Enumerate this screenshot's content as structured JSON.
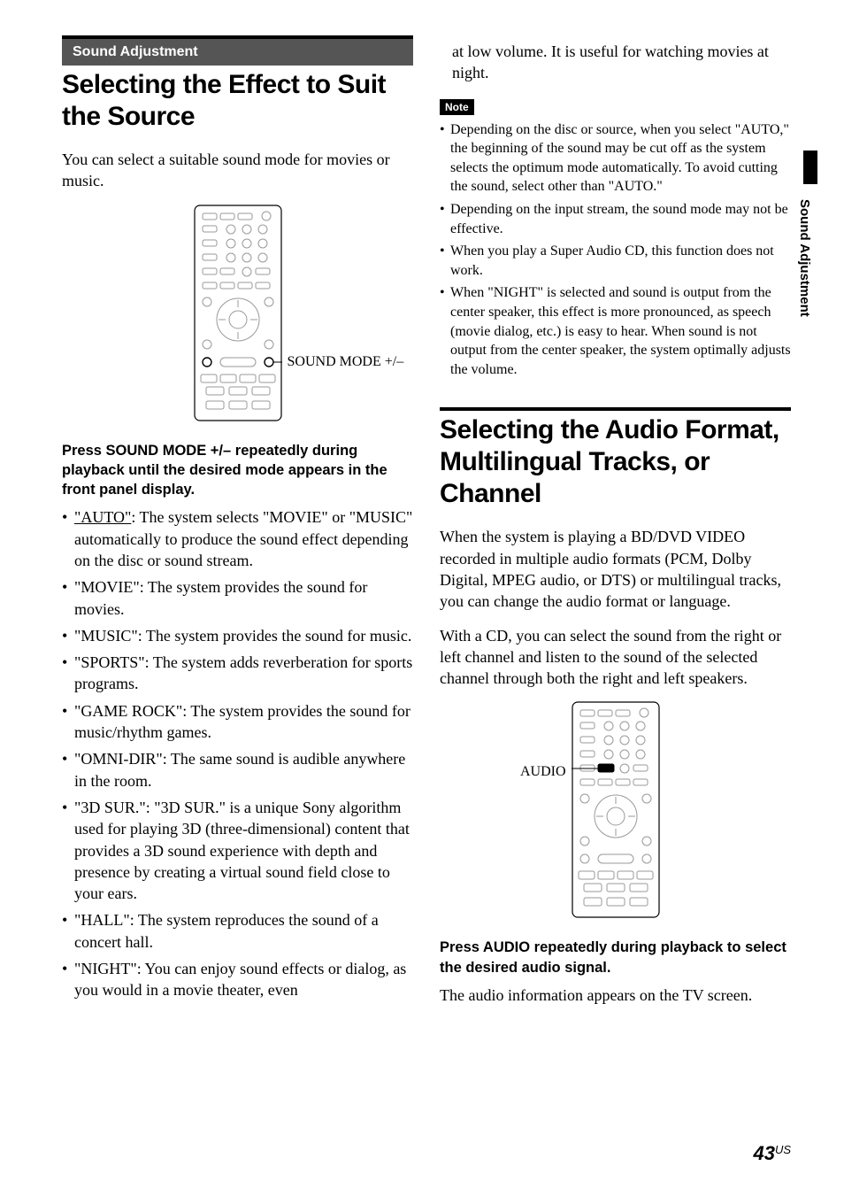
{
  "sectionBar": "Sound Adjustment",
  "heading1": "Selecting the Effect to Suit the Source",
  "intro1": "You can select a suitable sound mode for movies or music.",
  "remoteLabel1": "SOUND MODE +/–",
  "instr1": "Press SOUND MODE +/– repeatedly during playback until the desired mode appears in the front panel display.",
  "modes": [
    {
      "label": "\"AUTO\"",
      "underline": true,
      "rest": ": The system selects \"MOVIE\" or \"MUSIC\" automatically to produce the sound effect depending on the disc or sound stream."
    },
    {
      "label": "\"MOVIE\"",
      "rest": ": The system provides the sound for movies."
    },
    {
      "label": "\"MUSIC\"",
      "rest": ": The system provides the sound for music."
    },
    {
      "label": "\"SPORTS\"",
      "rest": ": The system adds reverberation for sports programs."
    },
    {
      "label": "\"GAME ROCK\"",
      "rest": ": The system provides the sound for music/rhythm games."
    },
    {
      "label": "\"OMNI-DIR\"",
      "rest": ": The same sound is audible anywhere in the room."
    },
    {
      "label": "\"3D SUR.\"",
      "rest": ": \"3D SUR.\" is a unique Sony algorithm used for playing 3D (three-dimensional) content that provides a 3D sound experience with depth and presence by creating a virtual sound field close to your ears."
    },
    {
      "label": "\"HALL\"",
      "rest": ": The system reproduces the sound of a concert hall."
    },
    {
      "label": "\"NIGHT\"",
      "rest": ": You can enjoy sound effects or dialog, as you would in a movie theater, even"
    }
  ],
  "col2top": "at low volume. It is useful for watching movies at night.",
  "noteLabel": "Note",
  "notes": [
    "Depending on the disc or source, when you select \"AUTO,\" the beginning of the sound may be cut off as the system selects the optimum mode automatically. To avoid cutting the sound, select other than \"AUTO.\"",
    "Depending on the input stream, the sound mode may not be effective.",
    "When you play a Super Audio CD, this function does not work.",
    "When \"NIGHT\" is selected and sound is output from the center speaker, this effect is more pronounced, as speech (movie dialog, etc.) is easy to hear. When sound is not output from the center speaker, the system optimally adjusts the volume."
  ],
  "heading2": "Selecting the Audio Format, Multilingual Tracks, or Channel",
  "intro2a": "When the system is playing a BD/DVD VIDEO recorded in multiple audio formats (PCM, Dolby Digital, MPEG audio, or DTS) or multilingual tracks, you can change the audio format or language.",
  "intro2b": "With a CD, you can select the sound from the right or left channel and listen to the sound of the selected channel through both the right and left speakers.",
  "remoteLabel2": "AUDIO",
  "instr2": "Press AUDIO repeatedly during playback to select the desired audio signal.",
  "outro2": "The audio information appears on the TV screen.",
  "sideTab": "Sound Adjustment",
  "pageNum": "43",
  "pageSuffix": "US",
  "colors": {
    "bar": "#555555",
    "black": "#000000"
  }
}
